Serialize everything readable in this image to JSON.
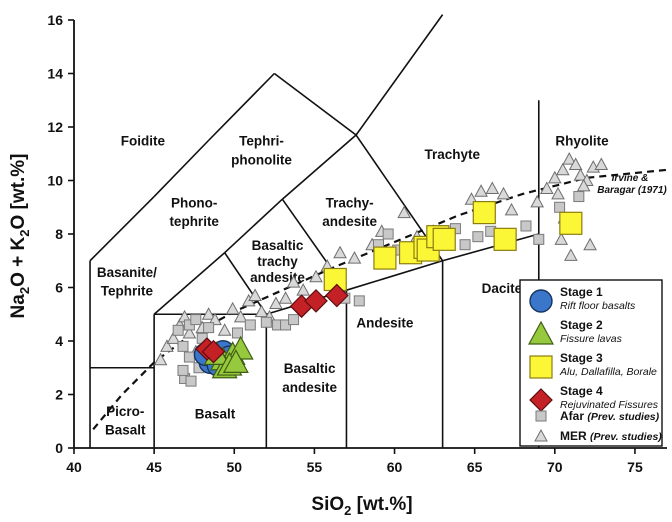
{
  "chart_data": {
    "type": "scatter",
    "xlabel": {
      "main": "SiO",
      "sub": "2",
      "rest": " [wt.%]"
    },
    "ylabel": {
      "p1": "Na",
      "s1": "2",
      "p2": "O + K",
      "s2": "2",
      "p3": "O [wt.%]"
    },
    "xlim": [
      40,
      77
    ],
    "ylim": [
      0,
      16
    ],
    "xticks": [
      "40",
      "45",
      "50",
      "55",
      "60",
      "65",
      "70",
      "75"
    ],
    "yticks": [
      "0",
      "2",
      "4",
      "6",
      "8",
      "10",
      "12",
      "14",
      "16"
    ],
    "grid": false,
    "legend_position": "bottom-right",
    "field_labels": [
      {
        "text": "Foidite",
        "x": 44.3,
        "y": 11.3
      },
      {
        "text": "Tephri-",
        "x": 51.7,
        "y": 11.3
      },
      {
        "text": "phonolite",
        "x": 51.7,
        "y": 10.6
      },
      {
        "text": "Phono-",
        "x": 47.5,
        "y": 9.0
      },
      {
        "text": "tephrite",
        "x": 47.5,
        "y": 8.3
      },
      {
        "text": "Trachy-",
        "x": 57.2,
        "y": 9.0
      },
      {
        "text": "andesite",
        "x": 57.2,
        "y": 8.3
      },
      {
        "text": "Trachyte",
        "x": 63.6,
        "y": 10.8
      },
      {
        "text": "Rhyolite",
        "x": 71.7,
        "y": 11.3
      },
      {
        "text": "Basaltic",
        "x": 52.7,
        "y": 7.4
      },
      {
        "text": "trachy",
        "x": 52.7,
        "y": 6.8
      },
      {
        "text": "andesite",
        "x": 52.7,
        "y": 6.2
      },
      {
        "text": "Basanite/",
        "x": 43.3,
        "y": 6.4
      },
      {
        "text": "Tephrite",
        "x": 43.3,
        "y": 5.7
      },
      {
        "text": "Dacite",
        "x": 66.7,
        "y": 5.8
      },
      {
        "text": "Andesite",
        "x": 59.4,
        "y": 4.5
      },
      {
        "text": "Basaltic",
        "x": 54.7,
        "y": 2.8
      },
      {
        "text": "andesite",
        "x": 54.7,
        "y": 2.1
      },
      {
        "text": "Basalt",
        "x": 48.8,
        "y": 1.1
      },
      {
        "text": "Picro-",
        "x": 43.2,
        "y": 1.2
      },
      {
        "text": "Basalt",
        "x": 43.2,
        "y": 0.5
      }
    ],
    "reference_curve_label": [
      "Irvine &",
      "Baragar (1971)"
    ],
    "series": [
      {
        "name": "Stage 1",
        "description": "Rift floor basalts",
        "marker": "circle",
        "color": "#3a76c9",
        "points": [
          [
            48.7,
            3.3
          ],
          [
            49.3,
            3.6
          ],
          [
            48.5,
            3.2
          ],
          [
            49.7,
            3.4
          ],
          [
            48.2,
            3.5
          ],
          [
            49.0,
            3.1
          ]
        ]
      },
      {
        "name": "Stage 2",
        "description": "Fissure lavas",
        "marker": "triangle",
        "color": "#96c93d",
        "points": [
          [
            49.3,
            3.3
          ],
          [
            49.9,
            3.5
          ],
          [
            50.4,
            3.7
          ],
          [
            49.4,
            3.0
          ],
          [
            48.9,
            3.5
          ],
          [
            49.7,
            3.1
          ],
          [
            50.1,
            3.2
          ]
        ]
      },
      {
        "name": "Stage 3",
        "description": "Alu, Dallafilla, Borale",
        "marker": "square",
        "color": "#fbf636",
        "points": [
          [
            56.3,
            6.3
          ],
          [
            59.4,
            7.1
          ],
          [
            61.0,
            7.3
          ],
          [
            61.9,
            7.5
          ],
          [
            62.1,
            7.4
          ],
          [
            62.7,
            7.9
          ],
          [
            63.1,
            7.8
          ],
          [
            65.6,
            8.8
          ],
          [
            66.9,
            7.8
          ],
          [
            71.0,
            8.4
          ]
        ]
      },
      {
        "name": "Stage 4",
        "description": "Rejuvinated Fissures",
        "marker": "diamond",
        "color": "#c42126",
        "points": [
          [
            48.3,
            3.7
          ],
          [
            48.7,
            3.6
          ],
          [
            54.2,
            5.3
          ],
          [
            55.1,
            5.5
          ],
          [
            56.4,
            5.7
          ]
        ]
      },
      {
        "name": "Afar",
        "description": "(Prev. studies)",
        "marker": "small-square",
        "color": "#c8c8c8",
        "points": [
          [
            46.5,
            4.4
          ],
          [
            46.8,
            3.8
          ],
          [
            47.2,
            4.6
          ],
          [
            46.9,
            2.6
          ],
          [
            47.3,
            2.5
          ],
          [
            47.8,
            3.0
          ],
          [
            48.0,
            4.1
          ],
          [
            47.6,
            4.8
          ],
          [
            46.8,
            2.9
          ],
          [
            47.2,
            3.4
          ],
          [
            48.4,
            4.5
          ],
          [
            50.2,
            4.3
          ],
          [
            51.0,
            4.6
          ],
          [
            52.0,
            4.7
          ],
          [
            52.7,
            4.6
          ],
          [
            53.2,
            4.6
          ],
          [
            53.7,
            4.8
          ],
          [
            56.9,
            5.6
          ],
          [
            57.8,
            5.5
          ],
          [
            59.0,
            7.6
          ],
          [
            59.6,
            8.0
          ],
          [
            60.2,
            7.4
          ],
          [
            60.8,
            7.1
          ],
          [
            61.4,
            7.3
          ],
          [
            62.5,
            7.7
          ],
          [
            63.8,
            8.2
          ],
          [
            64.4,
            7.6
          ],
          [
            65.2,
            7.9
          ],
          [
            66.0,
            8.1
          ],
          [
            67.0,
            8.0
          ],
          [
            68.2,
            8.3
          ],
          [
            69.0,
            7.8
          ],
          [
            70.3,
            9.0
          ],
          [
            71.5,
            9.4
          ],
          [
            70.8,
            8.2
          ]
        ]
      },
      {
        "name": "MER",
        "description": "(Prev. studies)",
        "marker": "small-triangle",
        "color": "#d9d9d9",
        "points": [
          [
            45.4,
            3.3
          ],
          [
            45.8,
            3.8
          ],
          [
            46.2,
            4.1
          ],
          [
            46.6,
            4.6
          ],
          [
            46.9,
            4.9
          ],
          [
            47.2,
            4.3
          ],
          [
            47.6,
            3.6
          ],
          [
            48.0,
            4.5
          ],
          [
            48.4,
            5.0
          ],
          [
            48.8,
            4.8
          ],
          [
            49.4,
            4.4
          ],
          [
            49.9,
            5.2
          ],
          [
            50.4,
            4.9
          ],
          [
            50.9,
            5.5
          ],
          [
            51.3,
            5.7
          ],
          [
            51.7,
            5.1
          ],
          [
            52.2,
            4.9
          ],
          [
            52.6,
            5.4
          ],
          [
            53.2,
            5.6
          ],
          [
            53.7,
            6.2
          ],
          [
            54.3,
            5.9
          ],
          [
            55.1,
            6.4
          ],
          [
            55.8,
            6.8
          ],
          [
            56.6,
            7.3
          ],
          [
            57.5,
            7.1
          ],
          [
            58.6,
            7.6
          ],
          [
            59.2,
            8.1
          ],
          [
            60.6,
            8.8
          ],
          [
            61.4,
            7.9
          ],
          [
            64.8,
            9.3
          ],
          [
            65.4,
            9.6
          ],
          [
            66.1,
            9.7
          ],
          [
            66.8,
            9.5
          ],
          [
            67.3,
            8.9
          ],
          [
            68.9,
            9.2
          ],
          [
            69.5,
            9.7
          ],
          [
            70.0,
            10.1
          ],
          [
            70.5,
            10.4
          ],
          [
            70.9,
            10.8
          ],
          [
            71.3,
            10.6
          ],
          [
            71.6,
            10.2
          ],
          [
            72.0,
            10.0
          ],
          [
            72.4,
            10.5
          ],
          [
            72.9,
            10.6
          ],
          [
            70.2,
            9.5
          ],
          [
            70.6,
            8.6
          ],
          [
            71.8,
            9.8
          ],
          [
            72.2,
            7.6
          ],
          [
            71.0,
            7.2
          ],
          [
            70.4,
            7.8
          ]
        ]
      }
    ]
  }
}
